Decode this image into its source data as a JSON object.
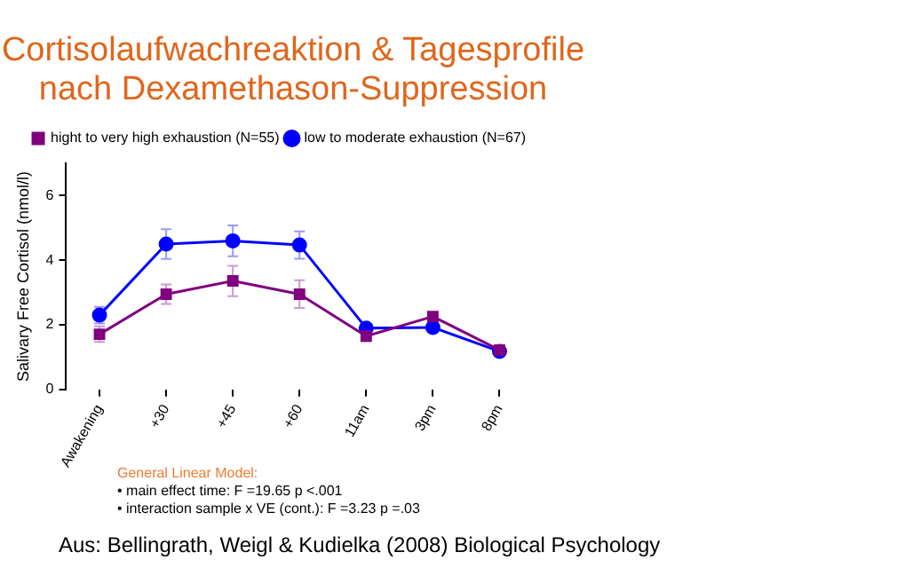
{
  "chart_data": {
    "type": "line",
    "title": "Cortisolaufwachreaktion & Tagesprofile\nnach Dexamethason-Suppression",
    "ylabel": "Salivary Free Cortisol (nmol/l)",
    "categories": [
      "Awakening",
      "+30",
      "+45",
      "+60",
      "11am",
      "3pm",
      "8pm"
    ],
    "ylim": [
      0,
      7
    ],
    "yticks": [
      0,
      2,
      4,
      6
    ],
    "series": [
      {
        "name": "low to moderate exhaustion (N=67)",
        "color": "#0000ff",
        "marker": "circle",
        "values": [
          2.3,
          4.5,
          4.6,
          4.47,
          1.9,
          1.92,
          1.18
        ],
        "errors": [
          0.26,
          0.46,
          0.48,
          0.42,
          null,
          null,
          null
        ]
      },
      {
        "name": "hight to very high exhaustion (N=55)",
        "color": "#800080",
        "marker": "square",
        "values": [
          1.71,
          2.95,
          3.36,
          2.95,
          1.65,
          2.26,
          1.22
        ],
        "errors": [
          0.24,
          0.3,
          0.47,
          0.43,
          0.15,
          null,
          null
        ]
      }
    ],
    "grid": false,
    "legend": "top right",
    "annotations": [
      "General Linear Model:",
      "• main effect time: F =19.65 p <.001",
      "• interaction sample x VE (cont.):  F =3.23  p =.03",
      "Aus: Bellingrath, Weigl & Kudielka (2008) Biological Psychology"
    ]
  }
}
